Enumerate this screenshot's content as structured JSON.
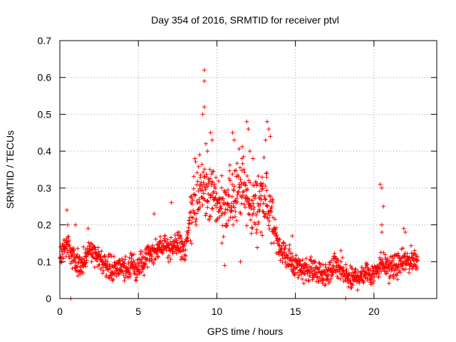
{
  "chart_data": {
    "type": "scatter",
    "title": "Day 354 of 2016, SRMTID for receiver ptvl",
    "xlabel": "GPS time / hours",
    "ylabel": "SRMTID / TECUs",
    "xlim": [
      0,
      24
    ],
    "ylim": [
      0,
      0.7
    ],
    "x_ticks": [
      0,
      5,
      10,
      15,
      20
    ],
    "y_ticks": [
      0,
      0.1,
      0.2,
      0.3,
      0.4,
      0.5,
      0.6,
      0.7
    ],
    "grid": true,
    "marker": "+",
    "color": "#ff0000",
    "series": [
      {
        "name": "SRMTID",
        "trend": [
          [
            0.0,
            0.12
          ],
          [
            0.5,
            0.15
          ],
          [
            1.0,
            0.09
          ],
          [
            1.5,
            0.11
          ],
          [
            2.0,
            0.13
          ],
          [
            2.5,
            0.11
          ],
          [
            3.0,
            0.09
          ],
          [
            3.5,
            0.08
          ],
          [
            4.0,
            0.08
          ],
          [
            4.5,
            0.09
          ],
          [
            5.0,
            0.08
          ],
          [
            5.5,
            0.11
          ],
          [
            6.0,
            0.13
          ],
          [
            6.5,
            0.14
          ],
          [
            7.0,
            0.14
          ],
          [
            7.5,
            0.15
          ],
          [
            8.0,
            0.13
          ],
          [
            8.3,
            0.22
          ],
          [
            8.7,
            0.27
          ],
          [
            9.0,
            0.3
          ],
          [
            9.5,
            0.3
          ],
          [
            10.0,
            0.26
          ],
          [
            10.5,
            0.22
          ],
          [
            11.0,
            0.29
          ],
          [
            11.5,
            0.32
          ],
          [
            12.0,
            0.26
          ],
          [
            12.5,
            0.24
          ],
          [
            13.0,
            0.3
          ],
          [
            13.5,
            0.2
          ],
          [
            14.0,
            0.14
          ],
          [
            14.5,
            0.11
          ],
          [
            15.0,
            0.09
          ],
          [
            15.5,
            0.08
          ],
          [
            16.0,
            0.08
          ],
          [
            16.5,
            0.07
          ],
          [
            17.0,
            0.06
          ],
          [
            17.5,
            0.09
          ],
          [
            18.0,
            0.07
          ],
          [
            18.5,
            0.05
          ],
          [
            19.0,
            0.06
          ],
          [
            19.5,
            0.07
          ],
          [
            20.0,
            0.07
          ],
          [
            20.5,
            0.1
          ],
          [
            21.0,
            0.08
          ],
          [
            21.5,
            0.09
          ],
          [
            22.0,
            0.1
          ],
          [
            22.8,
            0.11
          ]
        ],
        "highlights": [
          [
            9.2,
            0.62
          ],
          [
            9.2,
            0.59
          ],
          [
            9.2,
            0.52
          ],
          [
            9.1,
            0.5
          ],
          [
            9.3,
            0.42
          ],
          [
            9.4,
            0.4
          ],
          [
            9.6,
            0.45
          ],
          [
            9.7,
            0.43
          ],
          [
            8.9,
            0.39
          ],
          [
            8.6,
            0.38
          ],
          [
            11.0,
            0.45
          ],
          [
            11.1,
            0.43
          ],
          [
            11.6,
            0.38
          ],
          [
            11.9,
            0.48
          ],
          [
            12.0,
            0.46
          ],
          [
            12.1,
            0.4
          ],
          [
            12.3,
            0.38
          ],
          [
            13.1,
            0.43
          ],
          [
            13.2,
            0.48
          ],
          [
            13.3,
            0.46
          ],
          [
            13.4,
            0.44
          ],
          [
            11.5,
            0.1
          ],
          [
            10.5,
            0.09
          ],
          [
            20.4,
            0.31
          ],
          [
            20.5,
            0.3
          ],
          [
            20.6,
            0.25
          ],
          [
            20.5,
            0.18
          ],
          [
            20.5,
            0.2
          ],
          [
            21.9,
            0.19
          ],
          [
            22.0,
            0.18
          ],
          [
            17.9,
            0.13
          ],
          [
            18.2,
            0.0
          ],
          [
            0.7,
            0.0
          ],
          [
            0.45,
            0.24
          ],
          [
            0.5,
            0.2
          ],
          [
            1.0,
            0.2
          ],
          [
            1.8,
            0.19
          ],
          [
            6.0,
            0.23
          ],
          [
            7.1,
            0.26
          ],
          [
            12.8,
            0.18
          ],
          [
            14.8,
            0.17
          ]
        ]
      }
    ]
  }
}
